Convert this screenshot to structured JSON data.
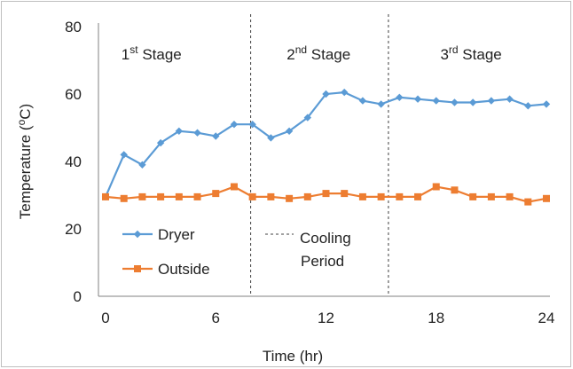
{
  "chart_data": {
    "type": "line",
    "title": "",
    "xlabel": "Time (hr)",
    "ylabel_base": "Temperature (",
    "ylabel_sup": "o",
    "ylabel_unit": "C)",
    "xlim": [
      0,
      24
    ],
    "ylim": [
      0,
      80
    ],
    "xticks": [
      0,
      6,
      12,
      18,
      24
    ],
    "yticks": [
      0,
      20,
      40,
      60,
      80
    ],
    "grid": false,
    "legend_position": "bottom-left",
    "series": [
      {
        "name": "Dryer",
        "color": "#5b9bd5",
        "marker": "diamond",
        "x": [
          0,
          1,
          2,
          3,
          4,
          5,
          6,
          7,
          8,
          9,
          10,
          11,
          12,
          13,
          14,
          15,
          16,
          17,
          18,
          19,
          20,
          21,
          22,
          23,
          24
        ],
        "y": [
          29.5,
          42,
          39,
          45.5,
          49,
          48.5,
          47.5,
          51,
          51,
          47,
          49,
          53,
          60,
          60.5,
          58,
          57,
          59,
          58.5,
          58,
          57.5,
          57.5,
          58,
          58.5,
          56.5,
          57
        ]
      },
      {
        "name": "Outside",
        "color": "#ed7d31",
        "marker": "square",
        "x": [
          0,
          1,
          2,
          3,
          4,
          5,
          6,
          7,
          8,
          9,
          10,
          11,
          12,
          13,
          14,
          15,
          16,
          17,
          18,
          19,
          20,
          21,
          22,
          23,
          24
        ],
        "y": [
          29.5,
          29,
          29.5,
          29.5,
          29.5,
          29.5,
          30.5,
          32.5,
          29.5,
          29.5,
          29,
          29.5,
          30.5,
          30.5,
          29.5,
          29.5,
          29.5,
          29.5,
          32.5,
          31.5,
          29.5,
          29.5,
          29.5,
          28,
          29
        ]
      }
    ],
    "stages": [
      {
        "base": "1",
        "sup": "st",
        "rest": " Stage",
        "x_center": 2.5
      },
      {
        "base": "2",
        "sup": "nd",
        "rest": " Stage",
        "x_center": 11.6
      },
      {
        "base": "3",
        "sup": "rd",
        "rest": " Stage",
        "x_center": 19.9
      }
    ],
    "dividers_x": [
      7.9,
      15.4
    ],
    "cooling_legend": {
      "line1": "Cooling",
      "line2": "Period",
      "line_style": "dashed"
    }
  }
}
